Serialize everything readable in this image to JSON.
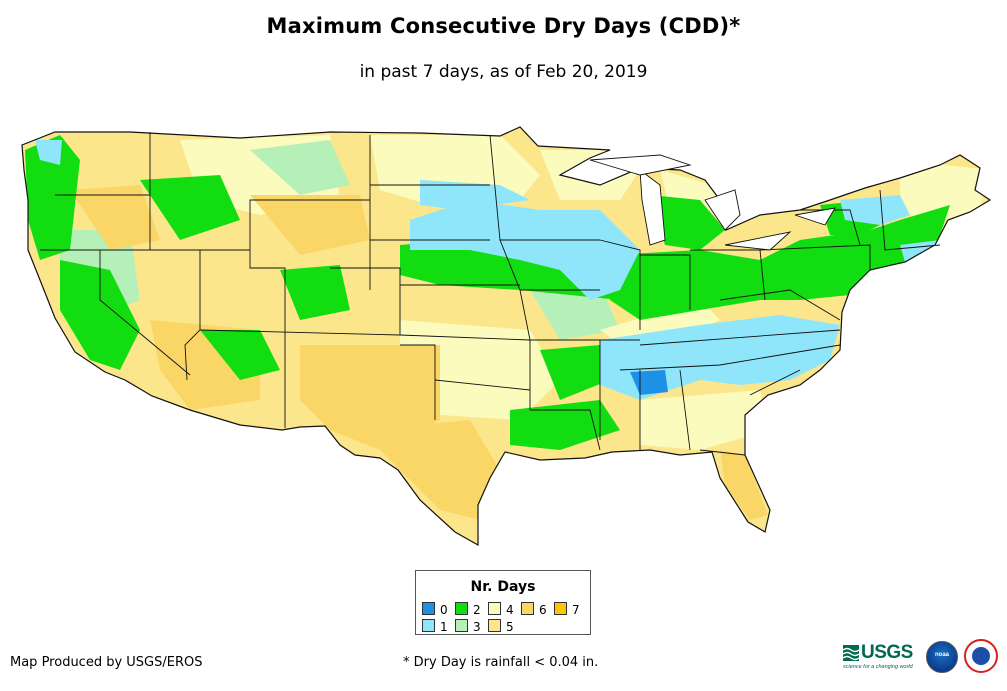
{
  "title": "Maximum Consecutive Dry Days (CDD)*",
  "subtitle": "in past 7 days, as of Feb 20, 2019",
  "legend": {
    "title": "Nr. Days",
    "items": [
      {
        "label": "0",
        "color": "#1e90e6"
      },
      {
        "label": "1",
        "color": "#8fe6fb"
      },
      {
        "label": "2",
        "color": "#11dd11"
      },
      {
        "label": "3",
        "color": "#b6f0b9"
      },
      {
        "label": "4",
        "color": "#fbfbbe"
      },
      {
        "label": "5",
        "color": "#fce68c"
      },
      {
        "label": "6",
        "color": "#fad667"
      },
      {
        "label": "7",
        "color": "#fbc700"
      }
    ]
  },
  "credit": "Map Produced by USGS/EROS",
  "footnote": "* Dry Day is rainfall < 0.04 in.",
  "logos": {
    "usgs": "USGS",
    "usgs_tagline": "science for a changing world",
    "noaa": "noaa",
    "nws": "national-weather-service"
  },
  "map": {
    "region": "Contiguous United States",
    "fill_default": "#fce68c",
    "border_color": "#111111"
  }
}
